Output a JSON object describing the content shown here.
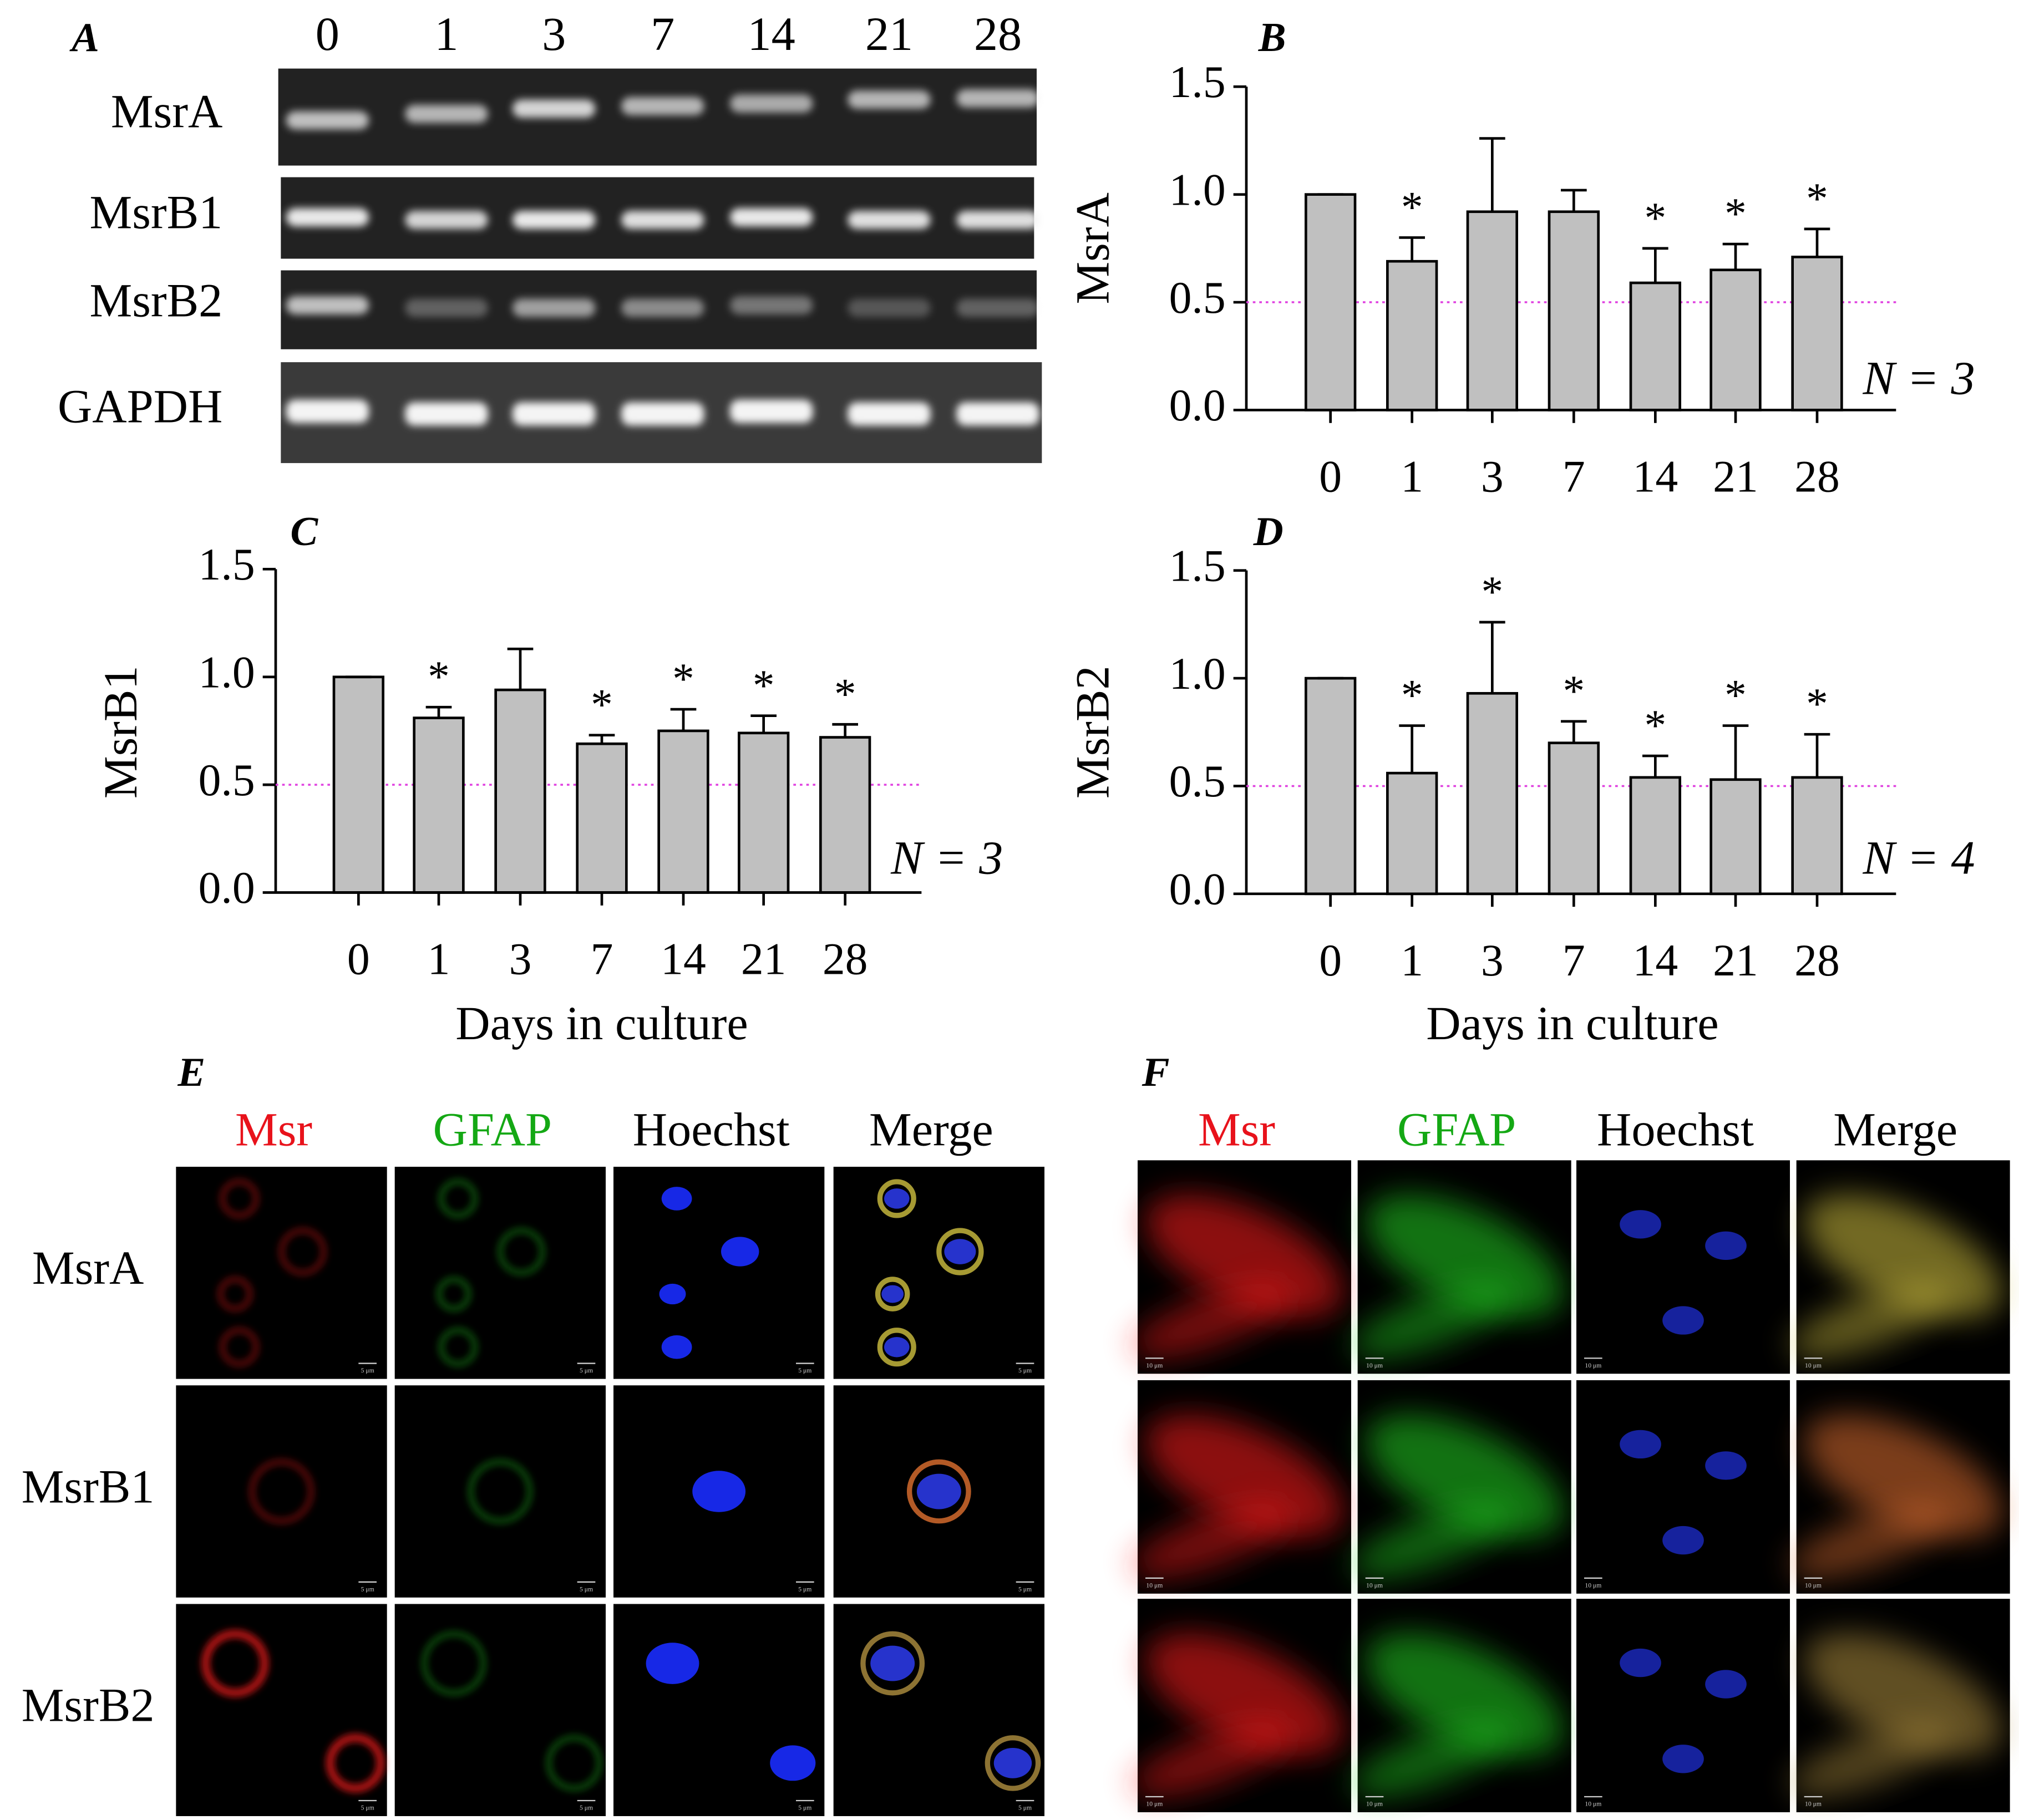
{
  "gel": {
    "panel_label": "A",
    "lanes": [
      "0",
      "1",
      "3",
      "7",
      "14",
      "21",
      "28"
    ],
    "rows": [
      "MsrA",
      "MsrB1",
      "MsrB2",
      "GAPDH"
    ]
  },
  "chart_data": [
    {
      "type": "bar",
      "panel_label": "B",
      "ylabel": "MsrA",
      "annotation": "N = 3",
      "categories": [
        "0",
        "1",
        "3",
        "7",
        "14",
        "21",
        "28"
      ],
      "values": [
        1.0,
        0.69,
        0.92,
        0.92,
        0.59,
        0.65,
        0.71
      ],
      "errors": [
        0,
        0.11,
        0.34,
        0.1,
        0.16,
        0.12,
        0.13
      ],
      "markers": [
        null,
        "*",
        null,
        null,
        "*",
        "*",
        "*"
      ],
      "color": "#c0c0c0",
      "reference_line": 0.5,
      "reference_color": "#e040e0",
      "ylim": [
        0,
        1.5
      ],
      "yticks": [
        {
          "value": 0,
          "label": "0.0"
        },
        {
          "value": 0.5,
          "label": "0.5"
        },
        {
          "value": 1,
          "label": "1.0"
        },
        {
          "value": 1.5,
          "label": "1.5"
        }
      ]
    },
    {
      "type": "bar",
      "panel_label": "C",
      "ylabel": "MsrB1",
      "xlabel": "Days in culture",
      "annotation": "N = 3",
      "categories": [
        "0",
        "1",
        "3",
        "7",
        "14",
        "21",
        "28"
      ],
      "values": [
        1.0,
        0.81,
        0.94,
        0.69,
        0.75,
        0.74,
        0.72
      ],
      "errors": [
        0,
        0.05,
        0.19,
        0.04,
        0.1,
        0.08,
        0.06
      ],
      "markers": [
        null,
        "*",
        null,
        "*",
        "*",
        "*",
        "*"
      ],
      "color": "#c0c0c0",
      "reference_line": 0.5,
      "reference_color": "#e040e0",
      "ylim": [
        0,
        1.5
      ],
      "yticks": [
        {
          "value": 0,
          "label": "0.0"
        },
        {
          "value": 0.5,
          "label": "0.5"
        },
        {
          "value": 1,
          "label": "1.0"
        },
        {
          "value": 1.5,
          "label": "1.5"
        }
      ]
    },
    {
      "type": "bar",
      "panel_label": "D",
      "ylabel": "MsrB2",
      "xlabel": "Days in culture",
      "annotation": "N = 4",
      "categories": [
        "0",
        "1",
        "3",
        "7",
        "14",
        "21",
        "28"
      ],
      "values": [
        1.0,
        0.56,
        0.93,
        0.7,
        0.54,
        0.53,
        0.54
      ],
      "errors": [
        0,
        0.22,
        0.33,
        0.1,
        0.1,
        0.25,
        0.2
      ],
      "markers": [
        null,
        "*",
        "*",
        "*",
        "*",
        "*",
        "*"
      ],
      "color": "#c0c0c0",
      "reference_line": 0.5,
      "reference_color": "#e040e0",
      "ylim": [
        0,
        1.5
      ],
      "yticks": [
        {
          "value": 0,
          "label": "0.0"
        },
        {
          "value": 0.5,
          "label": "0.5"
        },
        {
          "value": 1,
          "label": "1.0"
        },
        {
          "value": 1.5,
          "label": "1.5"
        }
      ]
    }
  ],
  "micrographs": [
    {
      "panel_label": "E",
      "scale_bar": "5 μm",
      "columns": [
        {
          "label": "Msr",
          "color": "#e8121b"
        },
        {
          "label": "GFAP",
          "color": "#14a814"
        },
        {
          "label": "Hoechst",
          "color": "#000000"
        },
        {
          "label": "Merge",
          "color": "#000000"
        }
      ],
      "rows": [
        "MsrA",
        "MsrB1",
        "MsrB2"
      ]
    },
    {
      "panel_label": "F",
      "scale_bar": "10 μm",
      "columns": [
        {
          "label": "Msr",
          "color": "#e8121b"
        },
        {
          "label": "GFAP",
          "color": "#14a814"
        },
        {
          "label": "Hoechst",
          "color": "#000000"
        },
        {
          "label": "Merge",
          "color": "#000000"
        }
      ]
    }
  ]
}
